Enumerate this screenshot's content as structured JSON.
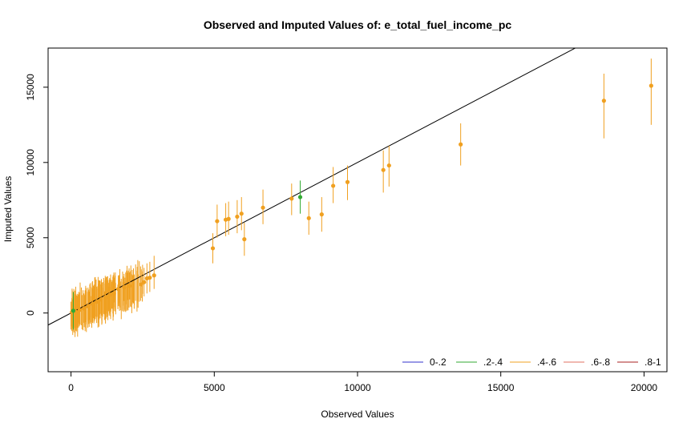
{
  "chart_data": {
    "type": "scatter",
    "title": "Observed and Imputed Values of: e_total_fuel_income_pc",
    "xlabel": "Observed Values",
    "ylabel": "Imputed Values",
    "xlim": [
      -800,
      20800
    ],
    "ylim": [
      -3900,
      17600
    ],
    "x_ticks": [
      0,
      5000,
      10000,
      15000,
      20000
    ],
    "y_ticks": [
      0,
      5000,
      10000,
      15000
    ],
    "grid": false,
    "reference_line": {
      "slope": 1,
      "intercept": 0,
      "color": "#000000"
    },
    "legend": {
      "placement": "bottom-right",
      "entries": [
        {
          "label": "0-.2",
          "color": "#3333cc"
        },
        {
          "label": ".2-.4",
          "color": "#33aa33"
        },
        {
          "label": ".4-.6",
          "color": "#f0a020"
        },
        {
          "label": ".6-.8",
          "color": "#e07060"
        },
        {
          "label": ".8-1",
          "color": "#aa2020"
        }
      ]
    },
    "cluster": {
      "color": "#f0a020",
      "x_range": [
        0,
        2900
      ],
      "note_count": 180
    },
    "points": [
      {
        "x": 4950,
        "y": 4300,
        "lo": 3300,
        "hi": 5300,
        "group": ".4-.6"
      },
      {
        "x": 5100,
        "y": 6100,
        "lo": 5000,
        "hi": 7200,
        "group": ".4-.6"
      },
      {
        "x": 5400,
        "y": 6200,
        "lo": 5100,
        "hi": 7300,
        "group": ".4-.6"
      },
      {
        "x": 5500,
        "y": 6250,
        "lo": 5200,
        "hi": 7400,
        "group": ".4-.6"
      },
      {
        "x": 5800,
        "y": 6400,
        "lo": 5300,
        "hi": 7500,
        "group": ".4-.6"
      },
      {
        "x": 5950,
        "y": 6600,
        "lo": 5500,
        "hi": 7700,
        "group": ".4-.6"
      },
      {
        "x": 6050,
        "y": 4900,
        "lo": 3800,
        "hi": 6000,
        "group": ".4-.6"
      },
      {
        "x": 6700,
        "y": 7000,
        "lo": 5900,
        "hi": 8200,
        "group": ".4-.6"
      },
      {
        "x": 7700,
        "y": 7600,
        "lo": 6500,
        "hi": 8600,
        "group": ".4-.6"
      },
      {
        "x": 8000,
        "y": 7700,
        "lo": 6600,
        "hi": 8800,
        "group": ".2-.4"
      },
      {
        "x": 8300,
        "y": 6300,
        "lo": 5200,
        "hi": 7400,
        "group": ".4-.6"
      },
      {
        "x": 8750,
        "y": 6550,
        "lo": 5400,
        "hi": 7700,
        "group": ".4-.6"
      },
      {
        "x": 9150,
        "y": 8450,
        "lo": 7300,
        "hi": 9700,
        "group": ".4-.6"
      },
      {
        "x": 9650,
        "y": 8700,
        "lo": 7500,
        "hi": 9800,
        "group": ".4-.6"
      },
      {
        "x": 10900,
        "y": 9500,
        "lo": 8000,
        "hi": 10800,
        "group": ".4-.6"
      },
      {
        "x": 11100,
        "y": 9800,
        "lo": 8400,
        "hi": 11100,
        "group": ".4-.6"
      },
      {
        "x": 13600,
        "y": 11200,
        "lo": 9800,
        "hi": 12600,
        "group": ".4-.6"
      },
      {
        "x": 18600,
        "y": 14100,
        "lo": 11600,
        "hi": 15900,
        "group": ".4-.6"
      },
      {
        "x": 20250,
        "y": 15100,
        "lo": 12500,
        "hi": 16900,
        "group": ".4-.6"
      },
      {
        "x": 2450,
        "y": 1900,
        "lo": 1000,
        "hi": 2900,
        "group": ".4-.6"
      },
      {
        "x": 2550,
        "y": 2050,
        "lo": 1100,
        "hi": 3000,
        "group": ".4-.6"
      },
      {
        "x": 2650,
        "y": 2300,
        "lo": 1300,
        "hi": 3300,
        "group": ".4-.6"
      },
      {
        "x": 2750,
        "y": 2350,
        "lo": 1400,
        "hi": 3400,
        "group": ".4-.6"
      },
      {
        "x": 2900,
        "y": 2500,
        "lo": 1600,
        "hi": 3800,
        "group": ".4-.6"
      },
      {
        "x": 2050,
        "y": 1800,
        "lo": 900,
        "hi": 2700,
        "group": ".4-.6"
      },
      {
        "x": 1850,
        "y": 1700,
        "lo": 800,
        "hi": 2600,
        "group": ".4-.6"
      },
      {
        "x": 1650,
        "y": 1600,
        "lo": 600,
        "hi": 2500,
        "group": ".4-.6"
      },
      {
        "x": 1500,
        "y": 1300,
        "lo": 400,
        "hi": 2300,
        "group": ".4-.6"
      },
      {
        "x": 1350,
        "y": 1200,
        "lo": 200,
        "hi": 2200,
        "group": ".4-.6"
      },
      {
        "x": 1200,
        "y": 1050,
        "lo": 100,
        "hi": 2050,
        "group": ".4-.6"
      },
      {
        "x": 1050,
        "y": 900,
        "lo": -50,
        "hi": 1900,
        "group": ".4-.6"
      },
      {
        "x": 900,
        "y": 750,
        "lo": -200,
        "hi": 1750,
        "group": ".4-.6"
      },
      {
        "x": 750,
        "y": 600,
        "lo": -350,
        "hi": 1600,
        "group": ".4-.6"
      },
      {
        "x": 600,
        "y": 450,
        "lo": -500,
        "hi": 1450,
        "group": ".4-.6"
      },
      {
        "x": 450,
        "y": 300,
        "lo": -650,
        "hi": 1300,
        "group": ".4-.6"
      },
      {
        "x": 300,
        "y": 200,
        "lo": -800,
        "hi": 1200,
        "group": ".4-.6"
      },
      {
        "x": 150,
        "y": 100,
        "lo": -1000,
        "hi": 1100,
        "group": ".4-.6"
      },
      {
        "x": 30,
        "y": 50,
        "lo": -1200,
        "hi": 1000,
        "group": ".4-.6"
      },
      {
        "x": 80,
        "y": 150,
        "lo": -1100,
        "hi": 1400,
        "group": ".2-.4"
      }
    ]
  }
}
